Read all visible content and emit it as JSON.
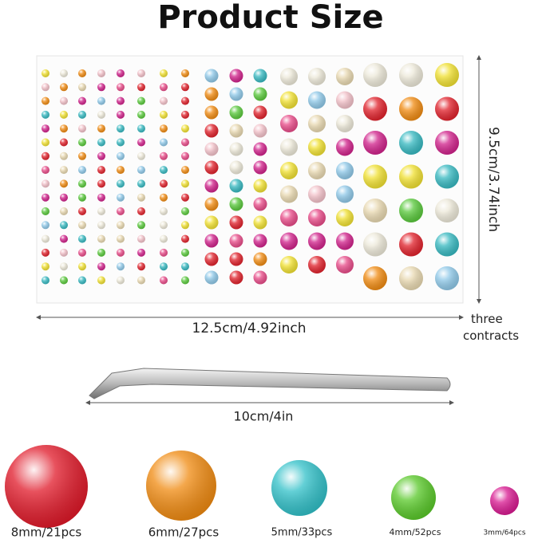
{
  "title": "Product Size",
  "sheet": {
    "height_label": "9.5cm/3.74inch",
    "width_label": "12.5cm/4.92inch",
    "note": "three contracts"
  },
  "tweezers": {
    "length_label": "10cm/4in"
  },
  "pearls": [
    {
      "label": "8mm/21pcs"
    },
    {
      "label": "6mm/27pcs"
    },
    {
      "label": "5mm/33pcs"
    },
    {
      "label": "4mm/52pcs"
    },
    {
      "label": "3mm/64pcs"
    }
  ]
}
